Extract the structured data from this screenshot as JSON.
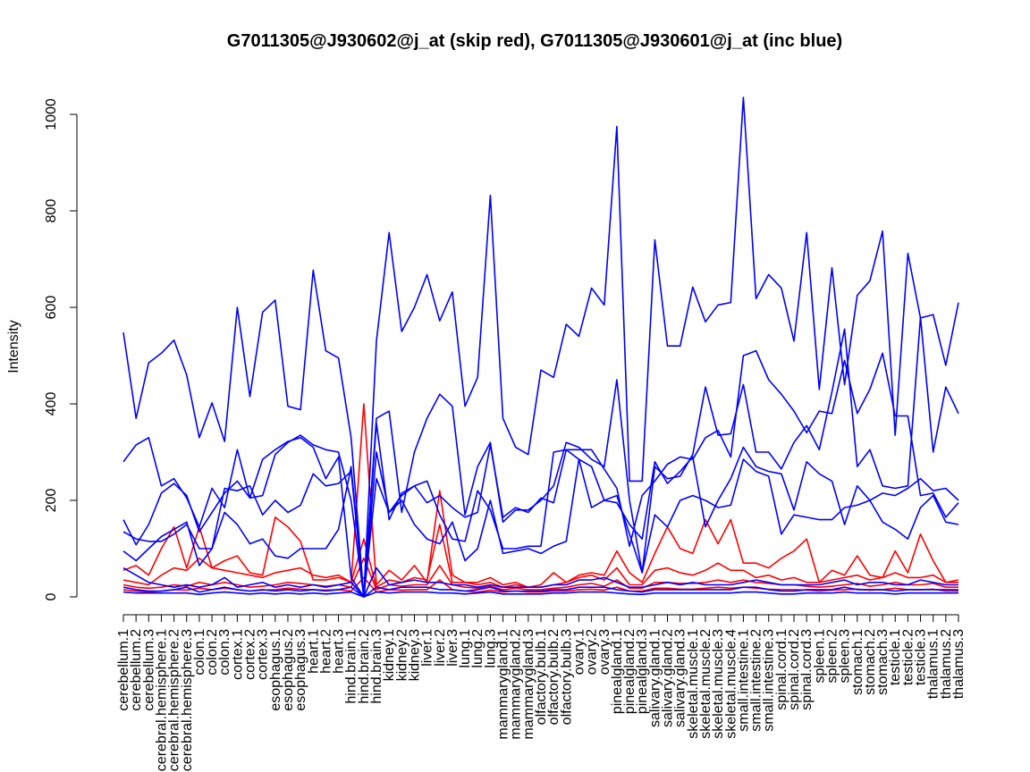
{
  "chart_data": {
    "type": "line",
    "title": "G7011305@J930602@j_at (skip red), G7011305@J930601@j_at (inc blue)",
    "xlabel": "",
    "ylabel": "Intensity",
    "ylim": [
      0,
      1040
    ],
    "yticks": [
      0,
      200,
      400,
      600,
      800,
      1000
    ],
    "categories": [
      "cerebellum.1",
      "cerebellum.2",
      "cerebellum.3",
      "cerebral.hemisphere.1",
      "cerebral.hemisphere.2",
      "cerebral.hemisphere.3",
      "colon.1",
      "colon.2",
      "colon.3",
      "cortex.1",
      "cortex.2",
      "cortex.3",
      "esophagus.1",
      "esophagus.2",
      "esophagus.3",
      "heart.1",
      "heart.2",
      "heart.3",
      "hind.brain.1",
      "hind.brain.2",
      "hind.brain.3",
      "kidney.1",
      "kidney.2",
      "kidney.3",
      "liver.1",
      "liver.2",
      "liver.3",
      "lung.1",
      "lung.2",
      "lung.3",
      "mammarygland.1",
      "mammarygland.2",
      "mammarygland.3",
      "olfactory.bulb.1",
      "olfactory.bulb.2",
      "olfactory.bulb.3",
      "ovary.1",
      "ovary.2",
      "ovary.3",
      "pinealgland.1",
      "pinealgland.2",
      "pinealgland.3",
      "salivary.gland.1",
      "salivary.gland.2",
      "salivary.gland.3",
      "skeletal.muscle.1",
      "skeletal.muscle.2",
      "skeletal.muscle.3",
      "skeletal.muscle.4",
      "small.intestine.1",
      "small.intestine.2",
      "small.intestine.3",
      "spinal.cord.1",
      "spinal.cord.2",
      "spinal.cord.3",
      "spleen.1",
      "spleen.2",
      "spleen.3",
      "stomach.1",
      "stomach.2",
      "stomach.3",
      "testicle.1",
      "testicle.2",
      "testicle.3",
      "thalamus.1",
      "thalamus.2",
      "thalamus.3"
    ],
    "series": [
      {
        "name": "blue-1",
        "color": "#0000ff",
        "values": [
          548,
          370,
          485,
          505,
          532,
          460,
          330,
          402,
          322,
          600,
          415,
          590,
          615,
          395,
          388,
          677,
          510,
          495,
          330,
          0,
          530,
          755,
          550,
          600,
          668,
          572,
          632,
          395,
          455,
          832,
          370,
          310,
          295,
          470,
          455,
          565,
          540,
          640,
          605,
          975,
          240,
          240,
          740,
          520,
          520,
          642,
          570,
          605,
          610,
          1035,
          618,
          668,
          640,
          530,
          755,
          430,
          682,
          440,
          625,
          655,
          758,
          335,
          712,
          578,
          585,
          480,
          610
        ]
      },
      {
        "name": "blue-2",
        "color": "#0000ff",
        "values": [
          280,
          315,
          330,
          230,
          245,
          205,
          145,
          225,
          185,
          305,
          205,
          285,
          305,
          322,
          330,
          310,
          245,
          290,
          40,
          0,
          370,
          385,
          175,
          300,
          370,
          420,
          395,
          170,
          270,
          320,
          155,
          180,
          180,
          200,
          230,
          320,
          310,
          285,
          270,
          450,
          200,
          50,
          270,
          245,
          250,
          295,
          435,
          335,
          338,
          440,
          300,
          300,
          265,
          320,
          355,
          305,
          425,
          555,
          270,
          305,
          230,
          225,
          230,
          580,
          300,
          435,
          380
        ]
      },
      {
        "name": "blue-3",
        "color": "#0000ff",
        "values": [
          160,
          108,
          150,
          215,
          235,
          210,
          135,
          175,
          215,
          240,
          205,
          210,
          295,
          320,
          335,
          315,
          305,
          300,
          200,
          0,
          300,
          175,
          210,
          230,
          195,
          210,
          185,
          165,
          175,
          315,
          165,
          185,
          175,
          205,
          195,
          305,
          305,
          305,
          265,
          225,
          105,
          210,
          240,
          275,
          290,
          285,
          330,
          345,
          290,
          500,
          510,
          450,
          420,
          385,
          340,
          385,
          380,
          490,
          380,
          430,
          505,
          375,
          375,
          210,
          215,
          165,
          195
        ]
      },
      {
        "name": "blue-4",
        "color": "#0000ff",
        "values": [
          135,
          120,
          115,
          115,
          130,
          150,
          100,
          100,
          225,
          220,
          230,
          170,
          200,
          175,
          190,
          255,
          230,
          235,
          260,
          0,
          360,
          160,
          215,
          230,
          240,
          170,
          120,
          115,
          220,
          180,
          100,
          100,
          105,
          105,
          300,
          305,
          285,
          185,
          200,
          195,
          150,
          120,
          280,
          235,
          260,
          290,
          145,
          200,
          245,
          310,
          270,
          260,
          255,
          180,
          280,
          255,
          240,
          150,
          230,
          200,
          215,
          210,
          225,
          245,
          220,
          225,
          200
        ]
      },
      {
        "name": "blue-5",
        "color": "#0000ff",
        "values": [
          95,
          75,
          100,
          125,
          140,
          155,
          65,
          100,
          175,
          150,
          110,
          120,
          85,
          80,
          100,
          100,
          100,
          140,
          270,
          0,
          245,
          175,
          200,
          150,
          120,
          110,
          155,
          75,
          100,
          200,
          90,
          95,
          100,
          90,
          105,
          115,
          285,
          270,
          200,
          210,
          130,
          50,
          170,
          145,
          200,
          210,
          200,
          185,
          190,
          285,
          260,
          250,
          130,
          170,
          165,
          160,
          160,
          185,
          190,
          200,
          155,
          140,
          120,
          185,
          210,
          155,
          150
        ]
      },
      {
        "name": "blue-6",
        "color": "#0000ff",
        "values": [
          60,
          45,
          30,
          25,
          20,
          25,
          20,
          25,
          40,
          20,
          25,
          30,
          20,
          25,
          20,
          25,
          20,
          25,
          30,
          0,
          60,
          25,
          30,
          35,
          30,
          30,
          25,
          25,
          20,
          25,
          20,
          20,
          20,
          20,
          25,
          25,
          35,
          35,
          40,
          30,
          20,
          20,
          25,
          30,
          25,
          30,
          25,
          25,
          25,
          30,
          35,
          30,
          25,
          25,
          25,
          25,
          30,
          35,
          25,
          30,
          30,
          25,
          25,
          35,
          30,
          25,
          25
        ]
      },
      {
        "name": "blue-7",
        "color": "#0000ff",
        "values": [
          20,
          15,
          12,
          12,
          15,
          20,
          10,
          15,
          20,
          15,
          12,
          15,
          12,
          15,
          12,
          15,
          12,
          15,
          20,
          0,
          20,
          15,
          20,
          20,
          20,
          15,
          15,
          12,
          15,
          20,
          12,
          12,
          12,
          12,
          15,
          15,
          20,
          20,
          20,
          15,
          12,
          10,
          15,
          15,
          15,
          15,
          15,
          15,
          15,
          20,
          20,
          15,
          12,
          12,
          15,
          15,
          15,
          20,
          15,
          15,
          15,
          12,
          15,
          15,
          15,
          15,
          15
        ]
      },
      {
        "name": "blue-8",
        "color": "#0000ff",
        "values": [
          10,
          8,
          8,
          8,
          8,
          8,
          5,
          8,
          10,
          8,
          6,
          8,
          6,
          8,
          6,
          8,
          6,
          8,
          10,
          0,
          10,
          8,
          10,
          10,
          10,
          8,
          8,
          6,
          8,
          10,
          6,
          6,
          6,
          6,
          8,
          8,
          10,
          10,
          10,
          8,
          6,
          5,
          8,
          8,
          8,
          8,
          8,
          8,
          8,
          10,
          10,
          8,
          6,
          6,
          8,
          8,
          8,
          10,
          8,
          8,
          8,
          6,
          8,
          8,
          8,
          8,
          8
        ]
      },
      {
        "name": "red-1",
        "color": "#ff0000",
        "values": [
          55,
          65,
          45,
          100,
          145,
          60,
          145,
          60,
          75,
          85,
          50,
          45,
          165,
          145,
          115,
          35,
          35,
          40,
          30,
          400,
          25,
          55,
          35,
          65,
          30,
          220,
          45,
          30,
          30,
          40,
          25,
          30,
          20,
          25,
          50,
          30,
          45,
          50,
          45,
          95,
          50,
          30,
          90,
          145,
          100,
          90,
          160,
          110,
          160,
          70,
          70,
          60,
          80,
          95,
          120,
          30,
          55,
          45,
          85,
          45,
          40,
          95,
          50,
          130,
          75,
          30,
          35
        ]
      },
      {
        "name": "red-2",
        "color": "#ff0000",
        "values": [
          35,
          30,
          25,
          45,
          60,
          55,
          80,
          60,
          55,
          50,
          45,
          40,
          50,
          55,
          60,
          45,
          40,
          45,
          30,
          120,
          20,
          35,
          30,
          40,
          35,
          150,
          30,
          30,
          25,
          30,
          20,
          25,
          20,
          20,
          25,
          30,
          40,
          45,
          35,
          60,
          25,
          25,
          55,
          60,
          50,
          45,
          55,
          70,
          55,
          55,
          40,
          45,
          35,
          40,
          30,
          30,
          35,
          40,
          45,
          35,
          40,
          50,
          40,
          40,
          45,
          30,
          30
        ]
      },
      {
        "name": "red-3",
        "color": "#ff0000",
        "values": [
          25,
          20,
          18,
          20,
          25,
          22,
          30,
          25,
          30,
          25,
          20,
          22,
          25,
          30,
          28,
          25,
          22,
          25,
          20,
          80,
          15,
          25,
          22,
          25,
          25,
          65,
          25,
          20,
          18,
          22,
          15,
          18,
          15,
          15,
          18,
          20,
          25,
          28,
          22,
          35,
          18,
          18,
          30,
          30,
          28,
          28,
          30,
          35,
          30,
          35,
          30,
          28,
          25,
          25,
          22,
          20,
          22,
          25,
          28,
          22,
          25,
          30,
          25,
          25,
          28,
          20,
          20
        ]
      },
      {
        "name": "red-4",
        "color": "#ff0000",
        "values": [
          15,
          12,
          10,
          12,
          15,
          14,
          18,
          15,
          18,
          15,
          12,
          14,
          15,
          18,
          16,
          15,
          14,
          15,
          12,
          40,
          10,
          15,
          14,
          15,
          15,
          35,
          15,
          12,
          10,
          14,
          10,
          12,
          10,
          10,
          12,
          12,
          15,
          16,
          14,
          20,
          12,
          12,
          18,
          18,
          16,
          16,
          18,
          20,
          18,
          20,
          18,
          16,
          15,
          15,
          14,
          12,
          14,
          15,
          16,
          14,
          15,
          18,
          15,
          15,
          16,
          12,
          12
        ]
      }
    ]
  }
}
